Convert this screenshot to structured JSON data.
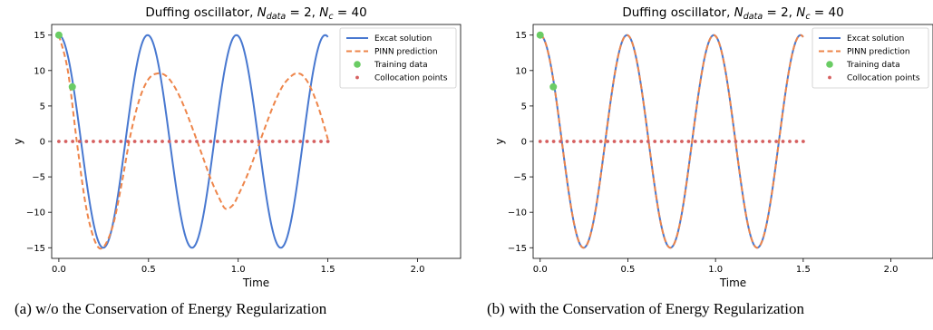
{
  "chart_data": [
    {
      "type": "line",
      "title": "Duffing oscillator, N_data = 2, N_c = 40",
      "title_parts": {
        "prefix": "Duffing oscillator, ",
        "n1_base": "N",
        "n1_sub": "data",
        "n1_val": " = 2, ",
        "n2_base": "N",
        "n2_sub": "c",
        "n2_val": " = 40"
      },
      "xlabel": "Time",
      "ylabel": "y",
      "xlim": [
        -0.04,
        2.24
      ],
      "ylim": [
        -16.5,
        16.5
      ],
      "xticks": [
        0.0,
        0.5,
        1.0,
        1.5,
        2.0
      ],
      "xtick_labels": [
        "0.0",
        "0.5",
        "1.0",
        "1.5",
        "2.0"
      ],
      "yticks": [
        -15,
        -10,
        -5,
        0,
        5,
        10,
        15
      ],
      "ytick_labels": [
        "−15",
        "−10",
        "−5",
        "0",
        "5",
        "10",
        "15"
      ],
      "legend": "top-right",
      "grid": false,
      "series": [
        {
          "name": "Excat solution",
          "style": "solid",
          "color": "#4878d0",
          "model": {
            "amplitude": 15,
            "period": 0.495,
            "t_start": 0.0,
            "t_end": 1.5
          }
        },
        {
          "name": "PINN prediction",
          "style": "dashed",
          "color": "#ee854a",
          "points": [
            [
              0.0,
              15.0
            ],
            [
              0.05,
              10.0
            ],
            [
              0.1,
              0.0
            ],
            [
              0.15,
              -9.0
            ],
            [
              0.2,
              -14.0
            ],
            [
              0.245,
              -15.0
            ],
            [
              0.3,
              -12.0
            ],
            [
              0.35,
              -6.0
            ],
            [
              0.4,
              1.0
            ],
            [
              0.45,
              6.0
            ],
            [
              0.5,
              8.8
            ],
            [
              0.55,
              9.6
            ],
            [
              0.6,
              9.2
            ],
            [
              0.65,
              7.5
            ],
            [
              0.7,
              4.8
            ],
            [
              0.75,
              1.5
            ],
            [
              0.8,
              -2.0
            ],
            [
              0.85,
              -5.5
            ],
            [
              0.9,
              -8.3
            ],
            [
              0.93,
              -9.5
            ],
            [
              0.97,
              -9.0
            ],
            [
              1.0,
              -7.6
            ],
            [
              1.05,
              -4.8
            ],
            [
              1.1,
              -1.5
            ],
            [
              1.15,
              2.0
            ],
            [
              1.2,
              5.3
            ],
            [
              1.25,
              7.9
            ],
            [
              1.3,
              9.3
            ],
            [
              1.33,
              9.6
            ],
            [
              1.36,
              9.3
            ],
            [
              1.4,
              7.8
            ],
            [
              1.45,
              4.6
            ],
            [
              1.5,
              0.3
            ]
          ]
        },
        {
          "name": "Training data",
          "style": "marker-large",
          "color": "#6acc64",
          "points": [
            [
              0.0,
              15.0
            ],
            [
              0.075,
              7.7
            ]
          ]
        },
        {
          "name": "Collocation points",
          "style": "marker-small",
          "color": "#d65f5f",
          "y_value": 0,
          "count": 40,
          "t_start": 0.0,
          "t_end": 1.5
        }
      ]
    },
    {
      "type": "line",
      "title": "Duffing oscillator, N_data = 2, N_c = 40",
      "title_parts": {
        "prefix": "Duffing oscillator, ",
        "n1_base": "N",
        "n1_sub": "data",
        "n1_val": " = 2, ",
        "n2_base": "N",
        "n2_sub": "c",
        "n2_val": " = 40"
      },
      "xlabel": "Time",
      "ylabel": "y",
      "xlim": [
        -0.04,
        2.24
      ],
      "ylim": [
        -16.5,
        16.5
      ],
      "xticks": [
        0.0,
        0.5,
        1.0,
        1.5,
        2.0
      ],
      "xtick_labels": [
        "0.0",
        "0.5",
        "1.0",
        "1.5",
        "2.0"
      ],
      "yticks": [
        -15,
        -10,
        -5,
        0,
        5,
        10,
        15
      ],
      "ytick_labels": [
        "−15",
        "−10",
        "−5",
        "0",
        "5",
        "10",
        "15"
      ],
      "legend": "top-right",
      "grid": false,
      "series": [
        {
          "name": "Excat solution",
          "style": "solid",
          "color": "#4878d0",
          "model": {
            "amplitude": 15,
            "period": 0.495,
            "t_start": 0.0,
            "t_end": 1.5
          }
        },
        {
          "name": "PINN prediction",
          "style": "dashed",
          "color": "#ee854a",
          "model": {
            "amplitude": 15,
            "period": 0.495,
            "t_start": 0.0,
            "t_end": 1.5
          }
        },
        {
          "name": "Training data",
          "style": "marker-large",
          "color": "#6acc64",
          "points": [
            [
              0.0,
              15.0
            ],
            [
              0.075,
              7.7
            ]
          ]
        },
        {
          "name": "Collocation points",
          "style": "marker-small",
          "color": "#d65f5f",
          "y_value": 0,
          "count": 40,
          "t_start": 0.0,
          "t_end": 1.5
        }
      ]
    }
  ],
  "captions": {
    "a": "(a) w/o the Conservation of Energy Regularization",
    "b": "(b) with the Conservation of Energy Regularization"
  }
}
